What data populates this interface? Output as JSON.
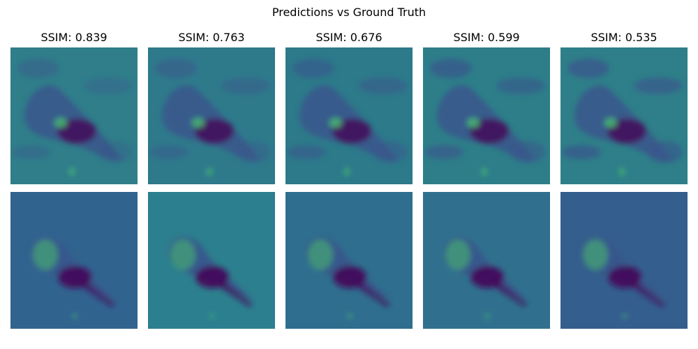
{
  "title": "Predictions vs Ground Truth",
  "columns": [
    {
      "ssim_label": "SSIM: 0.839",
      "ssim": 0.839
    },
    {
      "ssim_label": "SSIM: 0.763",
      "ssim": 0.763
    },
    {
      "ssim_label": "SSIM: 0.676",
      "ssim": 0.676
    },
    {
      "ssim_label": "SSIM: 0.599",
      "ssim": 0.599
    },
    {
      "ssim_label": "SSIM: 0.535",
      "ssim": 0.535
    }
  ],
  "colormap": "viridis",
  "colors": {
    "top_background": [
      "#2f7e8a",
      "#2e7a8b",
      "#2c7a8a",
      "#2d7e89",
      "#2e7f89"
    ],
    "bottom_background": [
      "#31638f",
      "#2c7f8e",
      "#2f6e8e",
      "#30708e",
      "#345e8d"
    ],
    "dark_purple": "#440d5c",
    "mid_blue": "#39558c",
    "bright_green": "#48c16e"
  }
}
